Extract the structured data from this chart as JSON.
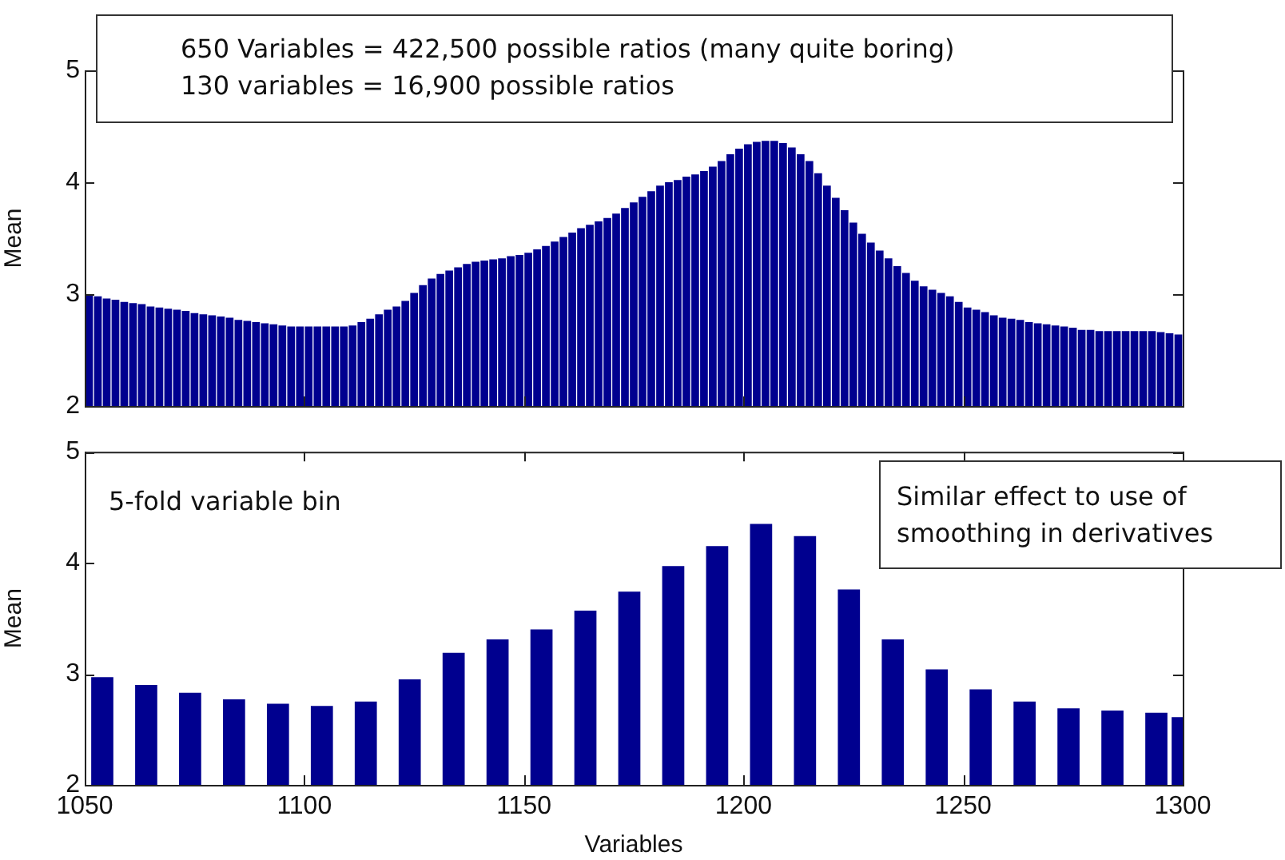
{
  "chart_data": [
    {
      "type": "bar",
      "ylabel": "Mean",
      "color": "#00008f",
      "grid": false,
      "tick_labels": "y",
      "annotations": [
        "650 Variables = 422,500 possible ratios (many quite boring)",
        "130 variables = 16,900 possible ratios"
      ],
      "xlim": [
        1050,
        1300
      ],
      "xticks": [
        1050,
        1100,
        1150,
        1200,
        1250,
        1300
      ],
      "ylim": [
        2,
        5
      ],
      "yticks": [
        2,
        3,
        4,
        5
      ],
      "x": [
        1051,
        1053,
        1055,
        1057,
        1059,
        1061,
        1063,
        1065,
        1067,
        1069,
        1071,
        1073,
        1075,
        1077,
        1079,
        1081,
        1083,
        1085,
        1087,
        1089,
        1091,
        1093,
        1095,
        1097,
        1099,
        1101,
        1103,
        1105,
        1107,
        1109,
        1111,
        1113,
        1115,
        1117,
        1119,
        1121,
        1123,
        1125,
        1127,
        1129,
        1131,
        1133,
        1135,
        1137,
        1139,
        1141,
        1143,
        1145,
        1147,
        1149,
        1151,
        1153,
        1155,
        1157,
        1159,
        1161,
        1163,
        1165,
        1167,
        1169,
        1171,
        1173,
        1175,
        1177,
        1179,
        1181,
        1183,
        1185,
        1187,
        1189,
        1191,
        1193,
        1195,
        1197,
        1199,
        1201,
        1203,
        1205,
        1207,
        1209,
        1211,
        1213,
        1215,
        1217,
        1219,
        1221,
        1223,
        1225,
        1227,
        1229,
        1231,
        1233,
        1235,
        1237,
        1239,
        1241,
        1243,
        1245,
        1247,
        1249,
        1251,
        1253,
        1255,
        1257,
        1259,
        1261,
        1263,
        1265,
        1267,
        1269,
        1271,
        1273,
        1275,
        1277,
        1279,
        1281,
        1283,
        1285,
        1287,
        1289,
        1291,
        1293,
        1295,
        1297,
        1299
      ],
      "values": [
        2.99,
        2.98,
        2.96,
        2.95,
        2.93,
        2.92,
        2.91,
        2.89,
        2.88,
        2.87,
        2.86,
        2.85,
        2.83,
        2.82,
        2.81,
        2.8,
        2.79,
        2.77,
        2.76,
        2.75,
        2.74,
        2.73,
        2.72,
        2.71,
        2.71,
        2.71,
        2.71,
        2.71,
        2.71,
        2.71,
        2.72,
        2.75,
        2.78,
        2.82,
        2.86,
        2.89,
        2.94,
        3.01,
        3.08,
        3.14,
        3.18,
        3.21,
        3.24,
        3.27,
        3.29,
        3.3,
        3.31,
        3.32,
        3.34,
        3.35,
        3.37,
        3.4,
        3.43,
        3.47,
        3.51,
        3.55,
        3.59,
        3.62,
        3.65,
        3.68,
        3.72,
        3.77,
        3.82,
        3.87,
        3.92,
        3.97,
        4.0,
        4.02,
        4.05,
        4.07,
        4.1,
        4.14,
        4.19,
        4.25,
        4.3,
        4.34,
        4.36,
        4.37,
        4.37,
        4.35,
        4.31,
        4.25,
        4.19,
        4.08,
        3.97,
        3.86,
        3.75,
        3.64,
        3.54,
        3.46,
        3.39,
        3.32,
        3.25,
        3.19,
        3.12,
        3.07,
        3.04,
        3.01,
        2.98,
        2.93,
        2.88,
        2.86,
        2.84,
        2.81,
        2.79,
        2.78,
        2.77,
        2.75,
        2.74,
        2.73,
        2.72,
        2.71,
        2.7,
        2.68,
        2.68,
        2.67,
        2.67,
        2.67,
        2.67,
        2.67,
        2.67,
        2.67,
        2.66,
        2.65,
        2.64
      ]
    },
    {
      "type": "bar",
      "xlabel": "Variables",
      "ylabel": "Mean",
      "color": "#00008f",
      "grid": false,
      "annotations": [
        "5-fold variable bin",
        "Similar effect to use of smoothing in derivatives"
      ],
      "xlim": [
        1050,
        1300
      ],
      "xticks": [
        1050,
        1100,
        1150,
        1200,
        1250,
        1300
      ],
      "ylim": [
        2,
        5
      ],
      "yticks": [
        2,
        3,
        4,
        5
      ],
      "x": [
        1054,
        1064,
        1074,
        1084,
        1094,
        1104,
        1114,
        1124,
        1134,
        1144,
        1154,
        1164,
        1174,
        1184,
        1194,
        1204,
        1214,
        1224,
        1234,
        1244,
        1254,
        1264,
        1274,
        1284,
        1294,
        1300
      ],
      "values": [
        2.97,
        2.9,
        2.83,
        2.77,
        2.73,
        2.71,
        2.75,
        2.95,
        3.19,
        3.31,
        3.4,
        3.57,
        3.74,
        3.97,
        4.15,
        4.35,
        4.24,
        3.76,
        3.31,
        3.04,
        2.86,
        2.75,
        2.69,
        2.67,
        2.65,
        2.61
      ]
    }
  ]
}
